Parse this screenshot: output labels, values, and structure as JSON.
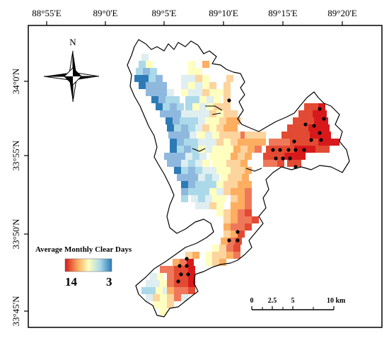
{
  "map": {
    "longitude_labels": [
      "88°55'E",
      "89°0'E",
      "89°5'E",
      "89°10'E",
      "89°15'E",
      "89°20'E"
    ],
    "latitude_labels": [
      "34°0'N",
      "33°55'N",
      "33°50'N",
      "33°45'N"
    ],
    "north_label": "N",
    "legend": {
      "title": "Average Monthly Clear Days",
      "max_label": "14",
      "min_label": "3",
      "colors": [
        "#d7191c",
        "#fdae61",
        "#ffffbf",
        "#abd9e9",
        "#2c7bb6"
      ]
    },
    "scale_bar": {
      "labels": [
        "0",
        "2.5",
        "5",
        "10 km"
      ]
    }
  }
}
